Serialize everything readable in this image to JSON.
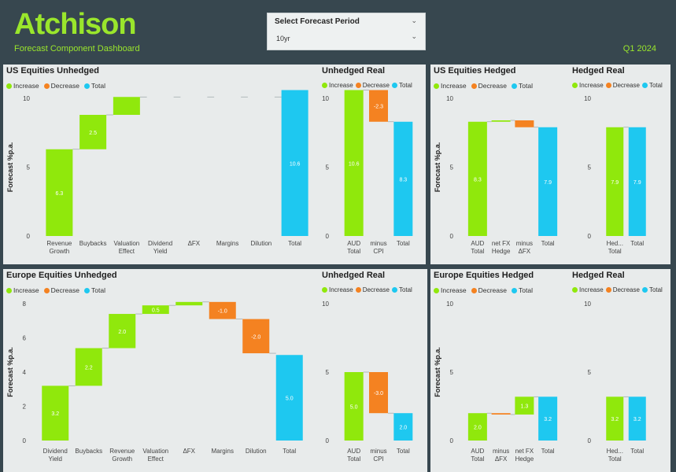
{
  "header": {
    "logo": "Atchison",
    "subtitle": "Forecast Component Dashboard",
    "quarter": "Q1 2024",
    "slicer": {
      "title": "Select Forecast Period",
      "value": "10yr"
    }
  },
  "legend": {
    "increase": "Increase",
    "decrease": "Decrease",
    "total": "Total"
  },
  "colors": {
    "increase": "#90e80c",
    "decrease": "#f48221",
    "total": "#1ec8f0"
  },
  "panels": {
    "us_unhedged": "US Equities Unhedged",
    "us_unhedged_real": "Unhedged Real",
    "us_hedged": "US Equities Hedged",
    "us_hedged_real": "Hedged Real",
    "eu_unhedged": "Europe Equities Unhedged",
    "eu_unhedged_real": "Unhedged Real",
    "eu_hedged": "Europe Equities Hedged",
    "eu_hedged_real": "Hedged Real"
  },
  "chart_data": [
    {
      "id": "us_unhedged",
      "type": "waterfall",
      "ylabel": "Forecast %p.a.",
      "ylim": [
        0,
        10
      ],
      "yticks": [
        0,
        5,
        10
      ],
      "categories": [
        [
          "Revenue",
          "Growth"
        ],
        [
          "Buybacks"
        ],
        [
          "Valuation",
          "Effect"
        ],
        [
          "Dividend",
          "Yield"
        ],
        [
          "ΔFX"
        ],
        [
          "Margins"
        ],
        [
          "Dilution"
        ],
        [
          "Total"
        ]
      ],
      "values": [
        6.3,
        2.5,
        1.3,
        0,
        0,
        0,
        0,
        10.6
      ],
      "kinds": [
        "increase",
        "increase",
        "increase",
        "increase",
        "increase",
        "increase",
        "increase",
        "total"
      ],
      "labels": [
        "6.3",
        "2.5",
        "",
        "",
        "",
        "",
        "",
        "10.6"
      ]
    },
    {
      "id": "us_unhedged_real",
      "type": "waterfall",
      "ylabel": "",
      "ylim": [
        0,
        10
      ],
      "yticks": [
        0,
        5,
        10
      ],
      "categories": [
        [
          "AUD",
          "Total"
        ],
        [
          "minus",
          "CPI"
        ],
        [
          "Total"
        ]
      ],
      "values": [
        10.6,
        -2.3,
        8.3
      ],
      "kinds": [
        "increase",
        "decrease",
        "total"
      ],
      "labels": [
        "10.6",
        "-2.3",
        "8.3"
      ]
    },
    {
      "id": "us_hedged",
      "type": "waterfall",
      "ylabel": "Forecast %p.a.",
      "ylim": [
        0,
        10
      ],
      "yticks": [
        0,
        5,
        10
      ],
      "categories": [
        [
          "AUD",
          "Total"
        ],
        [
          "net FX",
          "Hedge"
        ],
        [
          "minus",
          "ΔFX"
        ],
        [
          "Total"
        ]
      ],
      "values": [
        8.3,
        0.1,
        -0.5,
        7.9
      ],
      "kinds": [
        "increase",
        "increase",
        "decrease",
        "total"
      ],
      "labels": [
        "8.3",
        "",
        "",
        "7.9"
      ]
    },
    {
      "id": "us_hedged_real",
      "type": "waterfall",
      "ylabel": "",
      "ylim": [
        0,
        10
      ],
      "yticks": [
        0,
        5,
        10
      ],
      "categories": [
        [
          "Hed...",
          "Total"
        ],
        [
          "Total"
        ]
      ],
      "values": [
        7.9,
        7.9
      ],
      "kinds": [
        "increase",
        "total"
      ],
      "labels": [
        "7.9",
        "7.9"
      ]
    },
    {
      "id": "eu_unhedged",
      "type": "waterfall",
      "ylabel": "Forecast %p.a.",
      "ylim": [
        0,
        8
      ],
      "yticks": [
        0,
        2,
        4,
        6,
        8
      ],
      "categories": [
        [
          "Dividend",
          "Yield"
        ],
        [
          "Buybacks"
        ],
        [
          "Revenue",
          "Growth"
        ],
        [
          "Valuation",
          "Effect"
        ],
        [
          "ΔFX"
        ],
        [
          "Margins"
        ],
        [
          "Dilution"
        ],
        [
          "Total"
        ]
      ],
      "values": [
        3.2,
        2.2,
        2.0,
        0.5,
        0.2,
        -1.0,
        -2.0,
        5.0
      ],
      "kinds": [
        "increase",
        "increase",
        "increase",
        "increase",
        "increase",
        "decrease",
        "decrease",
        "total"
      ],
      "labels": [
        "3.2",
        "2.2",
        "2.0",
        "0.5",
        "",
        "-1.0",
        "-2.0",
        "5.0"
      ]
    },
    {
      "id": "eu_unhedged_real",
      "type": "waterfall",
      "ylabel": "",
      "ylim": [
        0,
        10
      ],
      "yticks": [
        0,
        5,
        10
      ],
      "categories": [
        [
          "AUD",
          "Total"
        ],
        [
          "minus",
          "CPI"
        ],
        [
          "Total"
        ]
      ],
      "values": [
        5.0,
        -3.0,
        2.0
      ],
      "kinds": [
        "increase",
        "decrease",
        "total"
      ],
      "labels": [
        "5.0",
        "-3.0",
        "2.0"
      ]
    },
    {
      "id": "eu_hedged",
      "type": "waterfall",
      "ylabel": "Forecast %p.a.",
      "ylim": [
        0,
        10
      ],
      "yticks": [
        0,
        5,
        10
      ],
      "categories": [
        [
          "AUD",
          "Total"
        ],
        [
          "minus",
          "ΔFX"
        ],
        [
          "net FX",
          "Hedge"
        ],
        [
          "Total"
        ]
      ],
      "values": [
        2.0,
        -0.1,
        1.3,
        3.2
      ],
      "kinds": [
        "increase",
        "decrease",
        "increase",
        "total"
      ],
      "labels": [
        "2.0",
        "",
        "1.3",
        "3.2"
      ]
    },
    {
      "id": "eu_hedged_real",
      "type": "waterfall",
      "ylabel": "",
      "ylim": [
        0,
        10
      ],
      "yticks": [
        0,
        5,
        10
      ],
      "categories": [
        [
          "Hed...",
          "Total"
        ],
        [
          "Total"
        ]
      ],
      "values": [
        3.2,
        3.2
      ],
      "kinds": [
        "increase",
        "total"
      ],
      "labels": [
        "3.2",
        "3.2"
      ]
    }
  ]
}
